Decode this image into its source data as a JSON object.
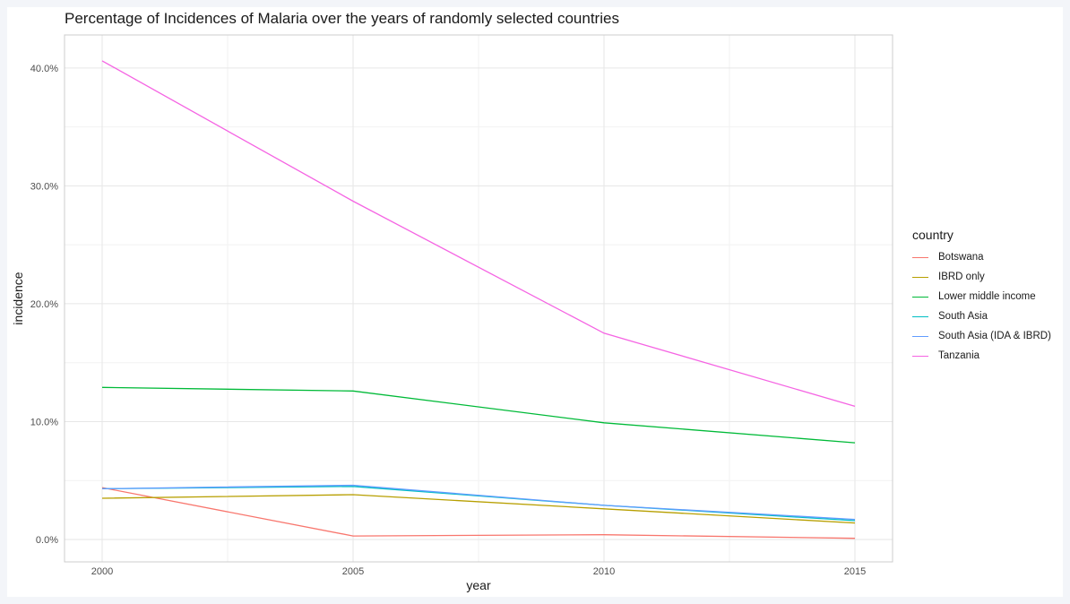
{
  "chart_data": {
    "type": "line",
    "title": "Percentage of Incidences of Malaria over the years of randomly selected countries",
    "xlabel": "year",
    "ylabel": "incidence",
    "x": [
      2000,
      2005,
      2010,
      2015
    ],
    "xlim": [
      1999.25,
      2015.75
    ],
    "ylim": [
      -1.9,
      42.8
    ],
    "y_ticks": [
      0,
      10,
      20,
      30,
      40
    ],
    "y_tick_labels": [
      "0.0%",
      "10.0%",
      "20.0%",
      "30.0%",
      "40.0%"
    ],
    "x_tick_labels": [
      "2000",
      "2005",
      "2010",
      "2015"
    ],
    "grid": true,
    "legend": {
      "title": "country",
      "placement": "right"
    },
    "series": [
      {
        "name": "Botswana",
        "color": "#F8766D",
        "values": [
          4.4,
          0.3,
          0.4,
          0.1
        ]
      },
      {
        "name": "IBRD only",
        "color": "#B79F00",
        "values": [
          3.5,
          3.8,
          2.6,
          1.4
        ]
      },
      {
        "name": "Lower middle income",
        "color": "#00BA38",
        "values": [
          12.9,
          12.6,
          9.9,
          8.2
        ]
      },
      {
        "name": "South Asia",
        "color": "#00BFC4",
        "values": [
          4.3,
          4.5,
          2.9,
          1.6
        ]
      },
      {
        "name": "South Asia (IDA & IBRD)",
        "color": "#619CFF",
        "values": [
          4.3,
          4.6,
          2.9,
          1.7
        ]
      },
      {
        "name": "Tanzania",
        "color": "#F564E3",
        "values": [
          40.6,
          28.7,
          17.5,
          11.3
        ]
      }
    ]
  }
}
